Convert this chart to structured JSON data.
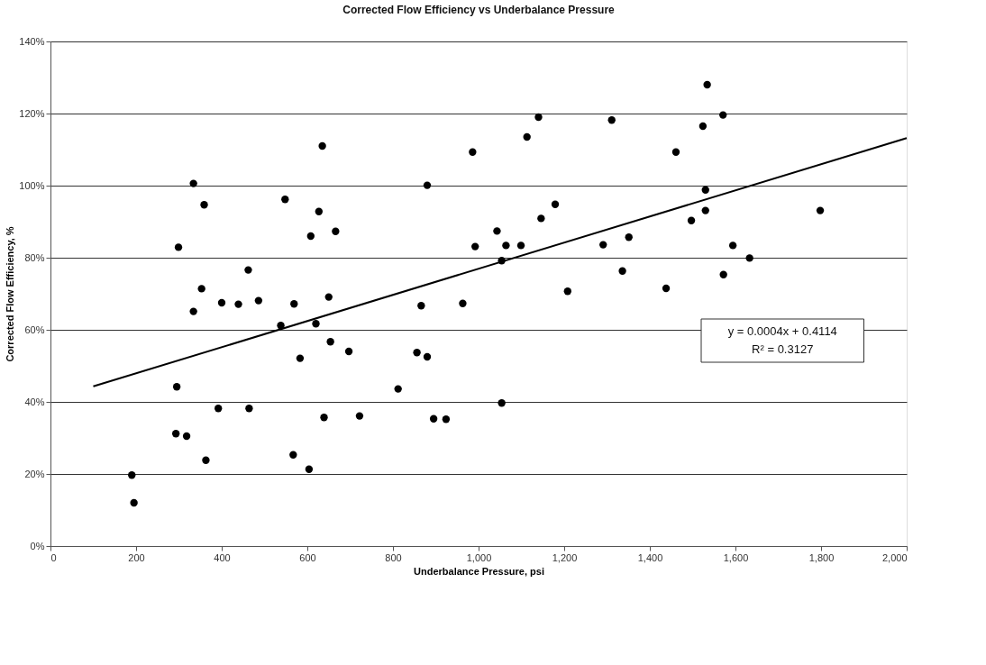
{
  "chart_data": {
    "type": "scatter",
    "title": "Corrected Flow Efficiency vs Underbalance Pressure",
    "xlabel": "Underbalance Pressure, psi",
    "ylabel": "Corrected Flow Efficiency, %",
    "series": [
      {
        "type": "scatter",
        "color": "#000000",
        "marker": "circle",
        "x": [
          635,
          334,
          359,
          548,
          627,
          608,
          666,
          299,
          462,
          353,
          400,
          439,
          486,
          334,
          569,
          650,
          538,
          620,
          654,
          697,
          583,
          295,
          392,
          464,
          639,
          293,
          318,
          363,
          567,
          604,
          190,
          195,
          1140,
          1311,
          1113,
          986,
          880,
          1179,
          1146,
          1043,
          992,
          1064,
          1099,
          1054,
          1291,
          1351,
          1336,
          1208,
          866,
          963,
          856,
          880,
          812,
          1054,
          722,
          895,
          924,
          1534,
          1571,
          1524,
          1461,
          1530,
          1530,
          1497,
          1798,
          1594,
          1633,
          1572,
          1438
        ],
        "values": [
          111,
          100.6,
          94.7,
          96.2,
          92.8,
          86,
          87.3,
          82.9,
          76.6,
          71.4,
          67.5,
          67.1,
          68.1,
          65.1,
          67.2,
          69.1,
          61.2,
          61.7,
          56.7,
          54,
          52.1,
          44.2,
          38.2,
          38.2,
          35.7,
          31.2,
          30.5,
          23.8,
          25.3,
          21.3,
          19.7,
          12,
          119,
          118.2,
          113.5,
          109.3,
          100.1,
          94.8,
          90.9,
          87.4,
          83.1,
          83.4,
          83.4,
          79.2,
          83.6,
          85.7,
          76.3,
          70.7,
          66.7,
          67.3,
          53.7,
          52.5,
          43.6,
          39.7,
          36.1,
          35.3,
          35.2,
          128,
          119.6,
          116.5,
          109.3,
          98.8,
          93.1,
          90.3,
          93.1,
          83.4,
          79.9,
          75.3,
          71.5
        ]
      },
      {
        "type": "line",
        "color": "#000000",
        "x": [
          100,
          2000
        ],
        "values": [
          44.3,
          113.2
        ]
      }
    ],
    "xlim": [
      0,
      2000
    ],
    "xticks": [
      0,
      200,
      400,
      600,
      800,
      {
        "value": 1000,
        "label": "1,000"
      },
      {
        "value": 1200,
        "label": "1,200"
      },
      {
        "value": 1400,
        "label": "1,400"
      },
      {
        "value": 1600,
        "label": "1,600"
      },
      {
        "value": 1800,
        "label": "1,800"
      },
      {
        "value": 2000,
        "label": "2,000"
      }
    ],
    "ylim": [
      0,
      140
    ],
    "yticks": [
      {
        "value": 0,
        "label": "0%"
      },
      {
        "value": 20,
        "label": "20%"
      },
      {
        "value": 40,
        "label": "40%"
      },
      {
        "value": 60,
        "label": "60%"
      },
      {
        "value": 80,
        "label": "80%"
      },
      {
        "value": 100,
        "label": "100%"
      },
      {
        "value": 120,
        "label": "120%"
      },
      {
        "value": 140,
        "label": "140%"
      }
    ],
    "grid": "y",
    "annotations": [
      "y = 0.0004x + 0.4114",
      "R² = 0.3127"
    ]
  }
}
